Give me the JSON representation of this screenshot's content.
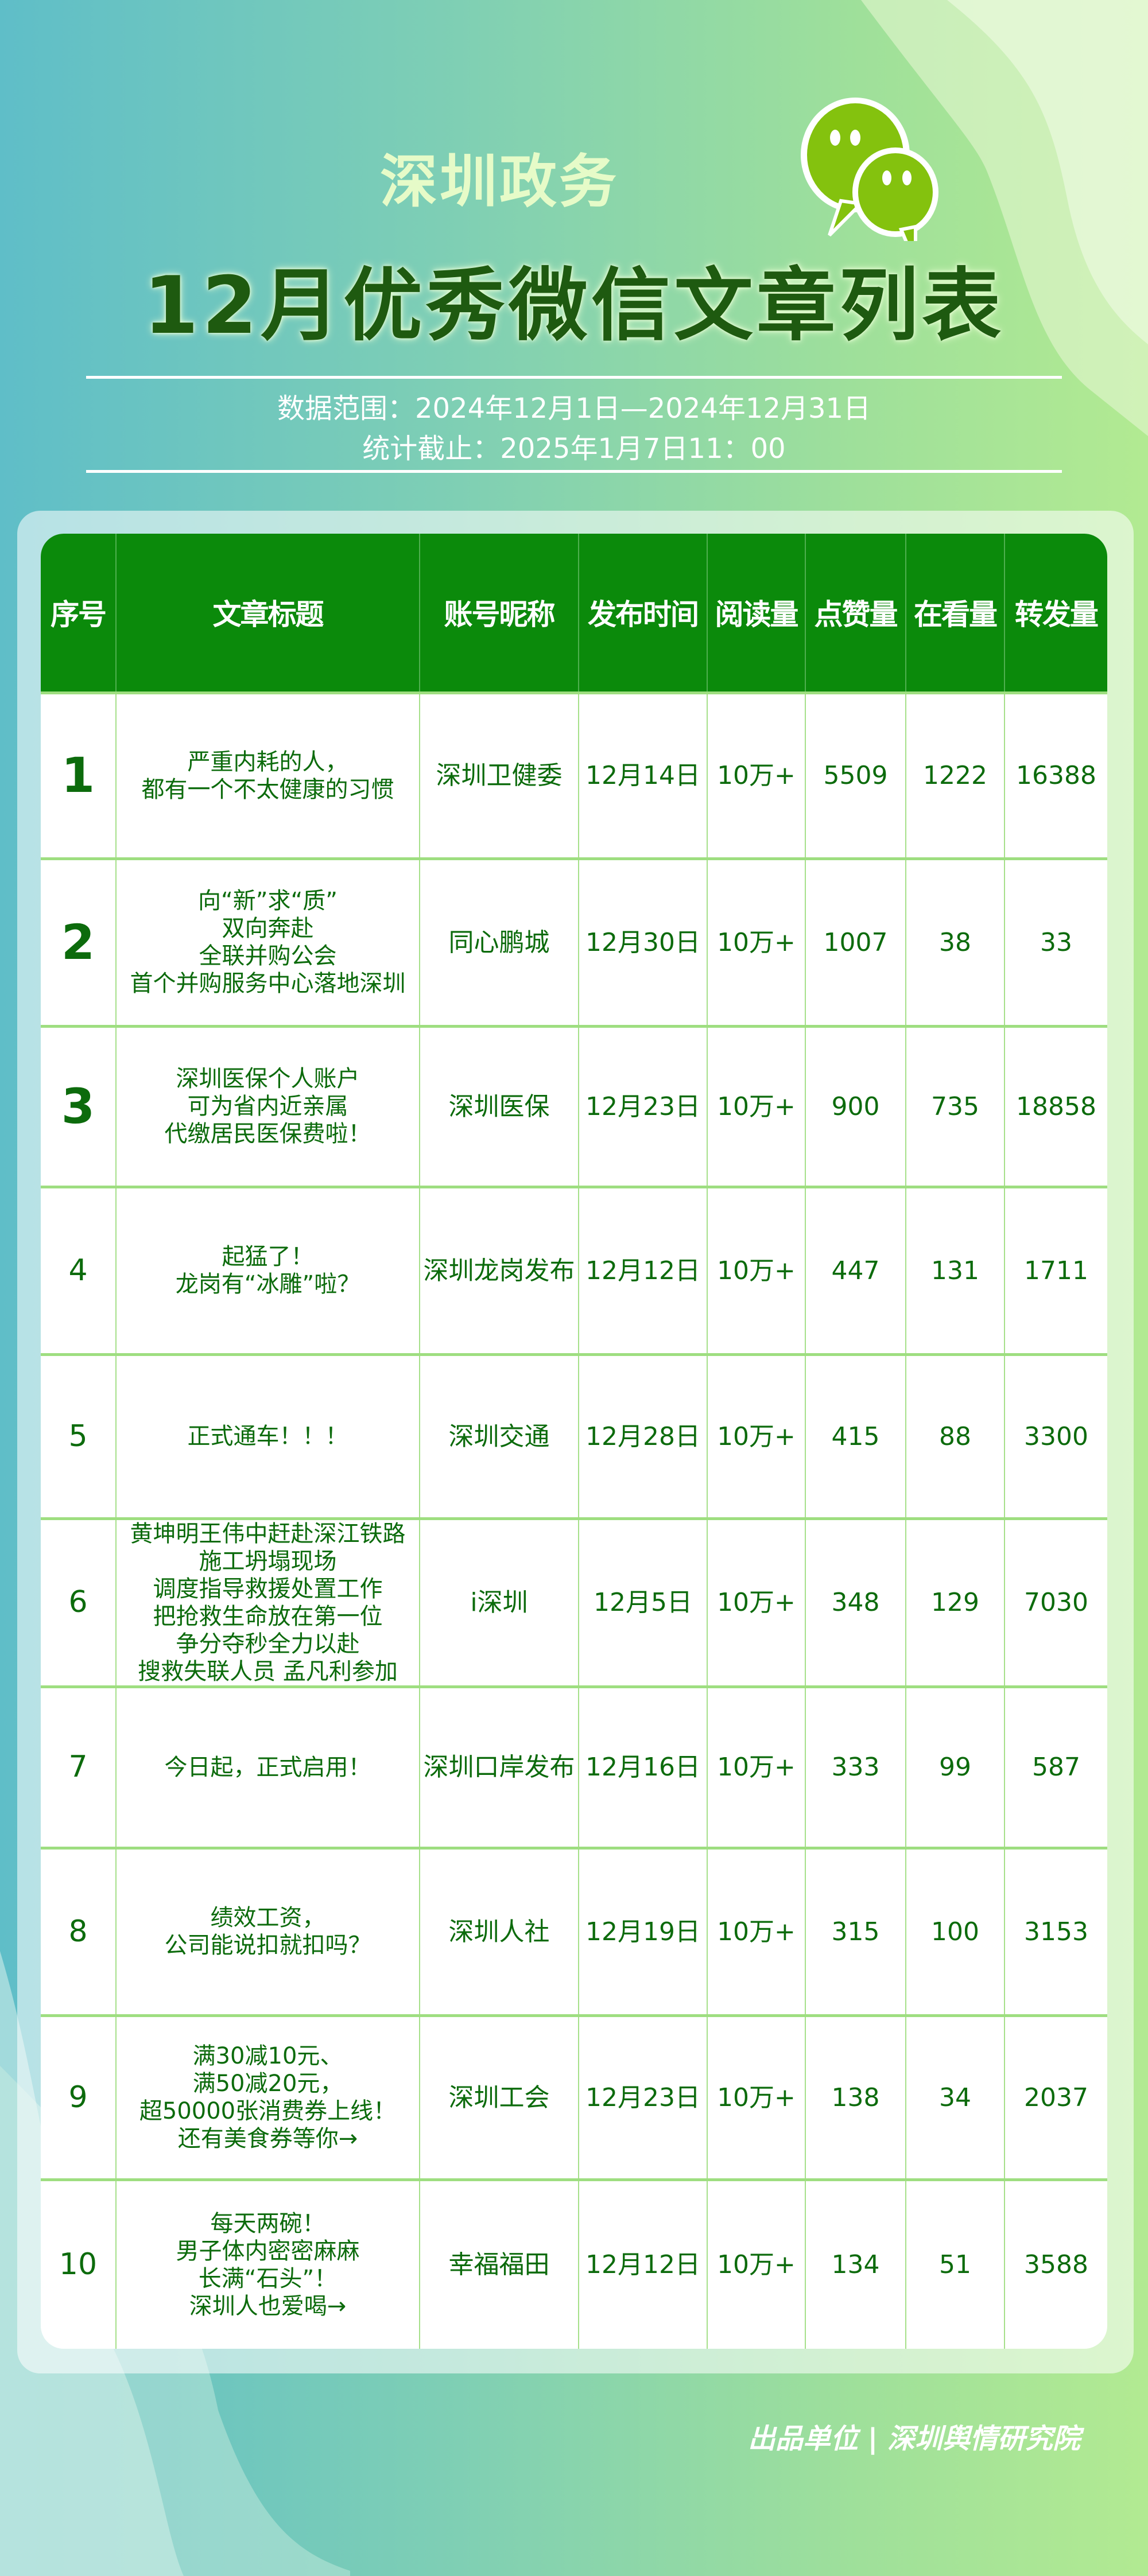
{
  "header": {
    "brand": "深圳政务",
    "title": "12月优秀微信文章列表",
    "date_range": "数据范围：2024年12月1日—2024年12月31日",
    "cutoff": "统计截止：2025年1月7日11：00",
    "logo_icon": "wechat-icon"
  },
  "colors": {
    "header_bg": "#0b8a0b",
    "text": "#0c6b0c",
    "accent_light": "#e6fbc8"
  },
  "table": {
    "columns": [
      "序号",
      "文章标题",
      "账号昵称",
      "发布时间",
      "阅读量",
      "点赞量",
      "在看量",
      "转发量"
    ],
    "rows": [
      {
        "rank": "1",
        "title": [
          "严重内耗的人，",
          "都有一个不太健康的习惯"
        ],
        "account": "深圳卫健委",
        "date": "12月14日",
        "reads": "10万+",
        "likes": "5509",
        "views": "1222",
        "shares": "16388"
      },
      {
        "rank": "2",
        "title": [
          "向“新”求“质”",
          "双向奔赴",
          "全联并购公会",
          "首个并购服务中心落地深圳"
        ],
        "account": "同心鹏城",
        "date": "12月30日",
        "reads": "10万+",
        "likes": "1007",
        "views": "38",
        "shares": "33"
      },
      {
        "rank": "3",
        "title": [
          "深圳医保个人账户",
          "可为省内近亲属",
          "代缴居民医保费啦！"
        ],
        "account": "深圳医保",
        "date": "12月23日",
        "reads": "10万+",
        "likes": "900",
        "views": "735",
        "shares": "18858"
      },
      {
        "rank": "4",
        "title": [
          "起猛了！",
          "龙岗有“冰雕”啦？"
        ],
        "account": "深圳龙岗发布",
        "date": "12月12日",
        "reads": "10万+",
        "likes": "447",
        "views": "131",
        "shares": "1711"
      },
      {
        "rank": "5",
        "title": [
          "正式通车！！！"
        ],
        "account": "深圳交通",
        "date": "12月28日",
        "reads": "10万+",
        "likes": "415",
        "views": "88",
        "shares": "3300"
      },
      {
        "rank": "6",
        "title": [
          "黄坤明王伟中赶赴深江铁路",
          "施工坍塌现场",
          "调度指导救援处置工作",
          "把抢救生命放在第一位",
          "争分夺秒全力以赴",
          "搜救失联人员 孟凡利参加"
        ],
        "account": "i深圳",
        "date": "12月5日",
        "reads": "10万+",
        "likes": "348",
        "views": "129",
        "shares": "7030"
      },
      {
        "rank": "7",
        "title": [
          "今日起，正式启用！"
        ],
        "account": "深圳口岸发布",
        "date": "12月16日",
        "reads": "10万+",
        "likes": "333",
        "views": "99",
        "shares": "587"
      },
      {
        "rank": "8",
        "title": [
          "绩效工资，",
          "公司能说扣就扣吗？"
        ],
        "account": "深圳人社",
        "date": "12月19日",
        "reads": "10万+",
        "likes": "315",
        "views": "100",
        "shares": "3153"
      },
      {
        "rank": "9",
        "title": [
          "满30减10元、",
          "满50减20元，",
          "超50000张消费券上线！",
          "还有美食券等你→"
        ],
        "account": "深圳工会",
        "date": "12月23日",
        "reads": "10万+",
        "likes": "138",
        "views": "34",
        "shares": "2037"
      },
      {
        "rank": "10",
        "title": [
          "每天两碗！",
          "男子体内密密麻麻",
          "长满“石头”！",
          "深圳人也爱喝→"
        ],
        "account": "幸福福田",
        "date": "12月12日",
        "reads": "10万+",
        "likes": "134",
        "views": "51",
        "shares": "3588"
      }
    ]
  },
  "footer": "出品单位 | 深圳舆情研究院"
}
